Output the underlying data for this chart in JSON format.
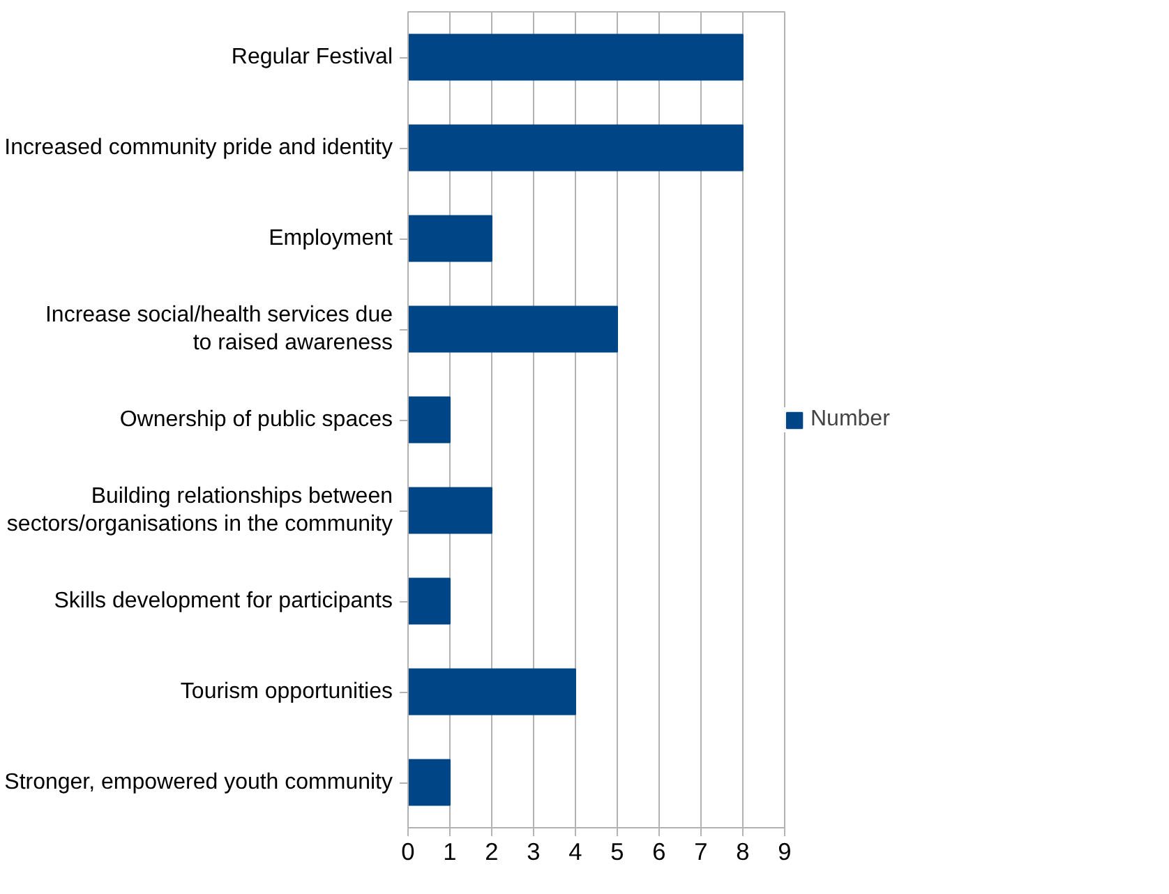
{
  "chart_data": {
    "type": "bar",
    "orientation": "horizontal",
    "categories": [
      "Regular Festival",
      "Increased community pride and identity",
      "Employment",
      "Increase social/health services due to raised awareness",
      "Ownership of public spaces",
      "Building relationships between sectors/organisations in the community",
      "Skills development for participants",
      "Tourism opportunities",
      "Stronger, empowered youth community"
    ],
    "series": [
      {
        "name": "Number",
        "color": "#004586",
        "values": [
          8,
          8,
          2,
          5,
          1,
          2,
          1,
          4,
          1
        ]
      }
    ],
    "xlim": [
      0,
      9
    ],
    "xticks": [
      0,
      1,
      2,
      3,
      4,
      5,
      6,
      7,
      8,
      9
    ],
    "grid": "x",
    "legend": "right"
  }
}
